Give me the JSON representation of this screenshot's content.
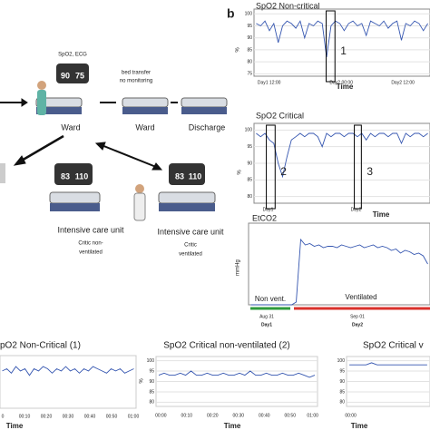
{
  "panel_label": "b",
  "diagram": {
    "ward_monitor_label": "SpO2, ECG",
    "ward_monitor_values": [
      "90",
      "75"
    ],
    "ward_label": "Ward",
    "transfer_note": [
      "bed transfer",
      "no monitoring"
    ],
    "ward2_label": "Ward",
    "discharge_label": "Discharge",
    "icu1_monitor_values": [
      "83",
      "110"
    ],
    "icu1_label": "Intensive care unit",
    "icu1_sub": [
      "Critic non-",
      "ventilated"
    ],
    "icu2_monitor_values": [
      "83",
      "110"
    ],
    "icu2_label": "Intensive care unit",
    "icu2_sub": [
      "Critic",
      "ventilated"
    ]
  },
  "charts": [
    {
      "title": "SpO2   Non-critical",
      "ylabel": "%",
      "xlabel": "Time",
      "ylim": [
        74,
        102
      ],
      "yticks": [
        75,
        80,
        85,
        90,
        95,
        100
      ],
      "xticks": [
        "Day1 12:00",
        "Day2 00:00",
        "Day2 12:00"
      ],
      "boxes": [
        "1"
      ],
      "values": [
        96,
        95,
        97,
        93,
        96,
        88,
        95,
        97,
        96,
        94,
        97,
        90,
        96,
        95,
        97,
        96,
        82,
        95,
        97,
        96,
        93,
        96,
        97,
        95,
        96,
        91,
        97,
        96,
        95,
        97,
        94,
        96,
        97,
        89,
        96,
        95,
        97,
        96,
        93,
        96
      ]
    },
    {
      "title": "SpO2   Critical",
      "ylabel": "%",
      "xlabel": "Time",
      "ylim": [
        78,
        102
      ],
      "yticks": [
        80,
        85,
        90,
        95,
        100
      ],
      "xticks": [
        "Day1",
        "Day2"
      ],
      "boxes": [
        "2",
        "3"
      ],
      "values": [
        99,
        98,
        99,
        97,
        96,
        90,
        86,
        92,
        97,
        98,
        99,
        98,
        99,
        99,
        98,
        95,
        99,
        98,
        99,
        99,
        98,
        99,
        99,
        98,
        99,
        97,
        99,
        98,
        99,
        99,
        98,
        99,
        99,
        96,
        99,
        98,
        99,
        99,
        98,
        99
      ]
    },
    {
      "title": "EtCO2",
      "ylabel": "mmHg",
      "xlabel": "Aug 31",
      "ylim": [
        0,
        60
      ],
      "xticks": [
        "Aug 31",
        "Sep 01"
      ],
      "xsub": [
        "Day1",
        "Day2"
      ],
      "phases": [
        "Non vent.",
        "Ventilated"
      ],
      "values": [
        0,
        0,
        0,
        0,
        0,
        0,
        0,
        0,
        0,
        0,
        2,
        48,
        44,
        45,
        43,
        44,
        42,
        43,
        43,
        42,
        44,
        43,
        42,
        43,
        44,
        42,
        43,
        44,
        42,
        43,
        42,
        40,
        41,
        38,
        40,
        39,
        37,
        38,
        36,
        30
      ]
    },
    {
      "title": "pO2 Non-Critical (1)",
      "xlabel": "Time",
      "ylim": [
        78,
        102
      ],
      "xticks": [
        "0",
        "00:10",
        "00:20",
        "00:30",
        "00:40",
        "00:50",
        "01:00"
      ],
      "values": [
        95,
        96,
        94,
        97,
        95,
        96,
        93,
        96,
        95,
        97,
        96,
        94,
        96,
        95,
        97,
        95,
        96,
        94,
        96,
        95,
        97,
        96,
        95,
        94,
        96,
        95,
        96,
        94,
        95,
        96
      ]
    },
    {
      "title": "SpO2 Critical non-ventilated (2)",
      "ylabel": "%",
      "xlabel": "Time",
      "ylim": [
        78,
        102
      ],
      "yticks": [
        80,
        85,
        90,
        95,
        100
      ],
      "xticks": [
        "00:00",
        "00:10",
        "00:20",
        "00:30",
        "00:40",
        "00:50",
        "01:00"
      ],
      "values": [
        93,
        94,
        93,
        93,
        94,
        93,
        95,
        93,
        93,
        94,
        93,
        93,
        94,
        93,
        93,
        94,
        93,
        95,
        93,
        93,
        94,
        93,
        93,
        94,
        93,
        93,
        94,
        93,
        92,
        93
      ]
    },
    {
      "title": "SpO2 Critical v",
      "xlabel": "Time",
      "ylim": [
        78,
        102
      ],
      "yticks": [
        80,
        85,
        90,
        95,
        100
      ],
      "xticks": [
        "00:00"
      ],
      "values": [
        98,
        98,
        98,
        98,
        99,
        98,
        98,
        98,
        98,
        98,
        98,
        98,
        98,
        98,
        98
      ]
    }
  ]
}
